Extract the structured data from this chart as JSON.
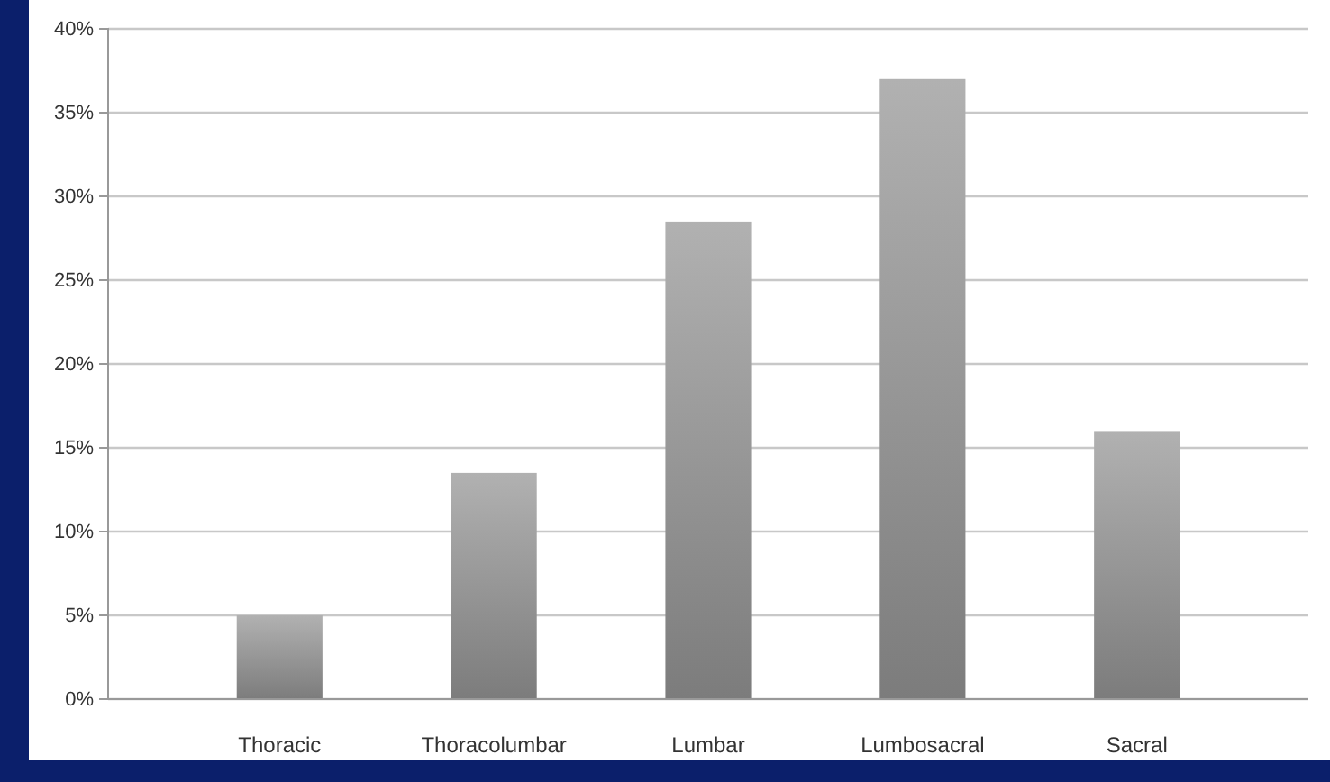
{
  "chart_data": {
    "type": "bar",
    "categories": [
      "Thoracic",
      "Thoracolumbar",
      "Lumbar",
      "Lumbosacral",
      "Sacral"
    ],
    "values": [
      5,
      13.5,
      28.5,
      37,
      16
    ],
    "color": "#8f8f8f",
    "ylim": [
      0,
      40
    ],
    "yticks": [
      {
        "value": 0,
        "label": "0%"
      },
      {
        "value": 5,
        "label": "5%"
      },
      {
        "value": 10,
        "label": "10%"
      },
      {
        "value": 15,
        "label": "15%"
      },
      {
        "value": 20,
        "label": "20%"
      },
      {
        "value": 25,
        "label": "25%"
      },
      {
        "value": 30,
        "label": "30%"
      },
      {
        "value": 35,
        "label": "35%"
      },
      {
        "value": 40,
        "label": "40%"
      }
    ],
    "grid": "y"
  }
}
